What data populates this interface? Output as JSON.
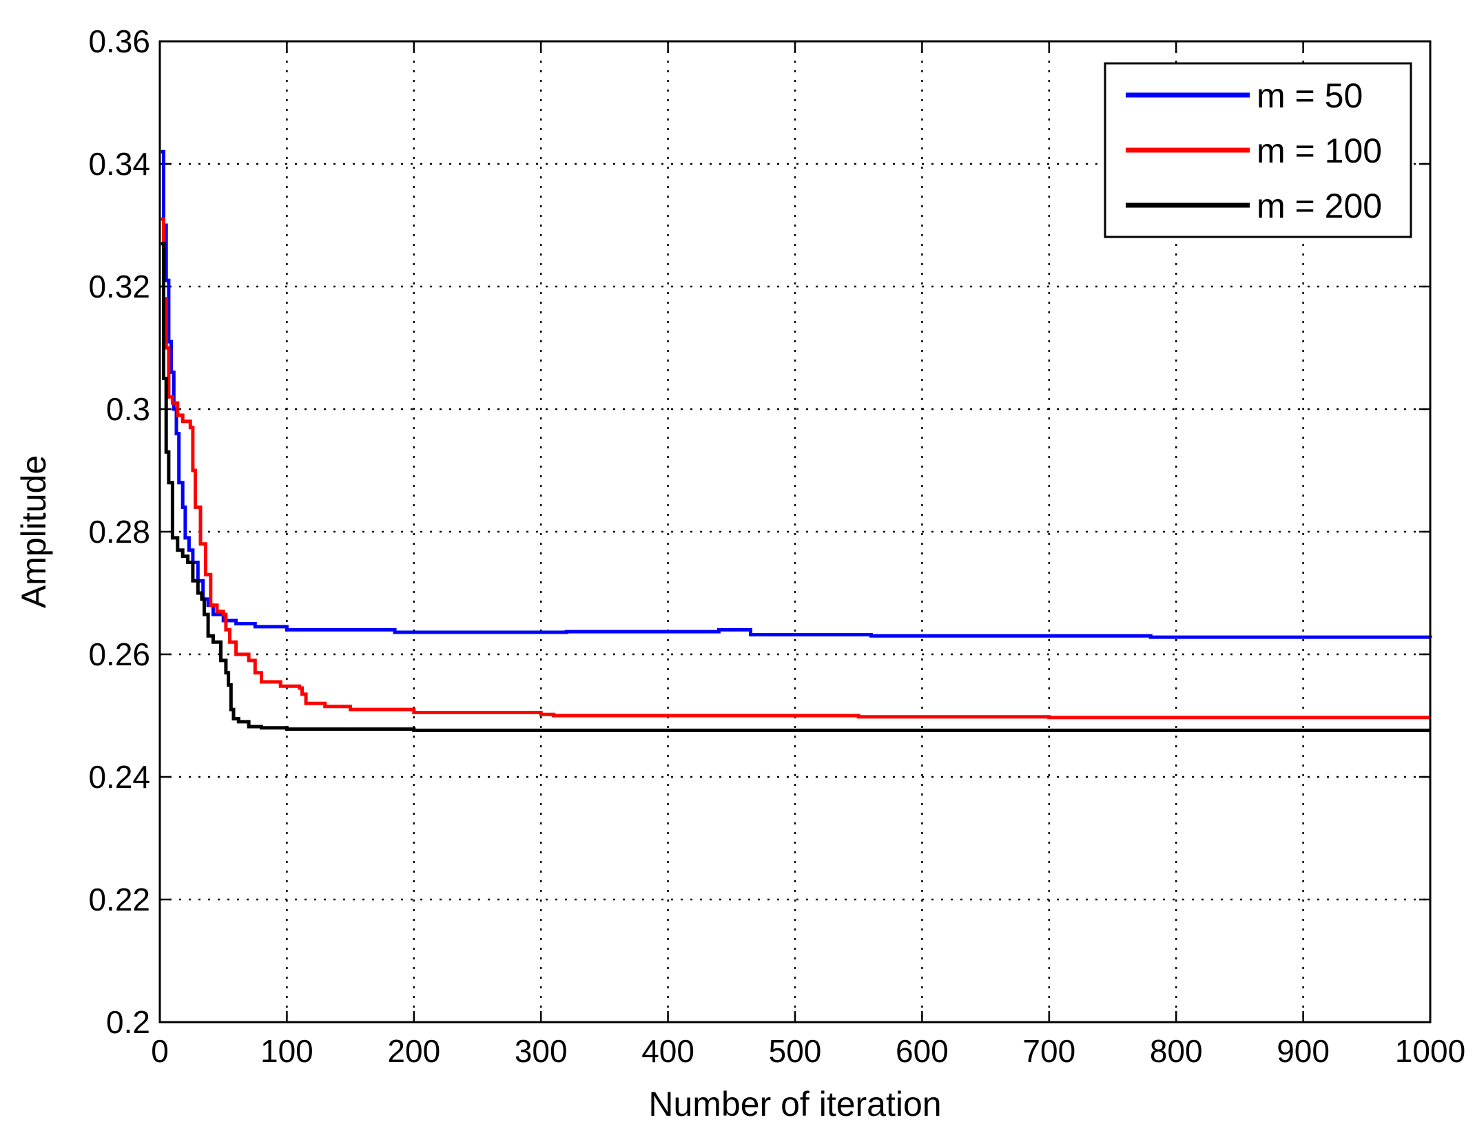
{
  "chart_data": {
    "type": "line",
    "title": "",
    "xlabel": "Number of iteration",
    "ylabel": "Amplitude",
    "xlim": [
      0,
      1000
    ],
    "ylim": [
      0.2,
      0.36
    ],
    "x_ticks": [
      0,
      100,
      200,
      300,
      400,
      500,
      600,
      700,
      800,
      900,
      1000
    ],
    "x_tick_labels": [
      "0",
      "100",
      "200",
      "300",
      "400",
      "500",
      "600",
      "700",
      "800",
      "900",
      "1000"
    ],
    "y_ticks": [
      0.2,
      0.22,
      0.24,
      0.26,
      0.28,
      0.3,
      0.32,
      0.34,
      0.36
    ],
    "y_tick_labels": [
      "0.2",
      "0.22",
      "0.24",
      "0.26",
      "0.28",
      "0.3",
      "0.32",
      "0.34",
      "0.36"
    ],
    "grid": true,
    "legend_position": "top-right",
    "series": [
      {
        "name": "m = 50",
        "color": "#0000ff",
        "points": [
          [
            1,
            0.342
          ],
          [
            3,
            0.33
          ],
          [
            5,
            0.321
          ],
          [
            7,
            0.311
          ],
          [
            9,
            0.306
          ],
          [
            11,
            0.3
          ],
          [
            13,
            0.296
          ],
          [
            15,
            0.288
          ],
          [
            18,
            0.284
          ],
          [
            20,
            0.279
          ],
          [
            23,
            0.277
          ],
          [
            26,
            0.275
          ],
          [
            30,
            0.272
          ],
          [
            34,
            0.269
          ],
          [
            38,
            0.268
          ],
          [
            42,
            0.2665
          ],
          [
            50,
            0.2655
          ],
          [
            60,
            0.265
          ],
          [
            70,
            0.265
          ],
          [
            75,
            0.2645
          ],
          [
            100,
            0.264
          ],
          [
            180,
            0.264
          ],
          [
            185,
            0.2636
          ],
          [
            300,
            0.2636
          ],
          [
            320,
            0.2637
          ],
          [
            440,
            0.264
          ],
          [
            460,
            0.264
          ],
          [
            465,
            0.2632
          ],
          [
            540,
            0.2632
          ],
          [
            560,
            0.263
          ],
          [
            700,
            0.263
          ],
          [
            780,
            0.2628
          ],
          [
            1000,
            0.2627
          ]
        ]
      },
      {
        "name": "m = 100",
        "color": "#ff0000",
        "points": [
          [
            1,
            0.331
          ],
          [
            3,
            0.318
          ],
          [
            5,
            0.31
          ],
          [
            7,
            0.302
          ],
          [
            10,
            0.301
          ],
          [
            14,
            0.299
          ],
          [
            18,
            0.298
          ],
          [
            24,
            0.297
          ],
          [
            26,
            0.29
          ],
          [
            28,
            0.284
          ],
          [
            32,
            0.278
          ],
          [
            36,
            0.273
          ],
          [
            40,
            0.268
          ],
          [
            45,
            0.267
          ],
          [
            50,
            0.2665
          ],
          [
            52,
            0.264
          ],
          [
            55,
            0.262
          ],
          [
            60,
            0.26
          ],
          [
            70,
            0.259
          ],
          [
            75,
            0.257
          ],
          [
            80,
            0.2555
          ],
          [
            95,
            0.2548
          ],
          [
            110,
            0.2545
          ],
          [
            112,
            0.2535
          ],
          [
            115,
            0.252
          ],
          [
            130,
            0.2515
          ],
          [
            150,
            0.251
          ],
          [
            200,
            0.2505
          ],
          [
            300,
            0.2502
          ],
          [
            310,
            0.25
          ],
          [
            400,
            0.25
          ],
          [
            550,
            0.2498
          ],
          [
            700,
            0.2497
          ],
          [
            1000,
            0.2497
          ]
        ]
      },
      {
        "name": "m = 200",
        "color": "#000000",
        "points": [
          [
            1,
            0.327
          ],
          [
            3,
            0.305
          ],
          [
            5,
            0.293
          ],
          [
            7,
            0.288
          ],
          [
            10,
            0.279
          ],
          [
            14,
            0.277
          ],
          [
            18,
            0.276
          ],
          [
            22,
            0.275
          ],
          [
            26,
            0.272
          ],
          [
            30,
            0.27
          ],
          [
            33,
            0.269
          ],
          [
            35,
            0.2665
          ],
          [
            38,
            0.263
          ],
          [
            42,
            0.262
          ],
          [
            48,
            0.259
          ],
          [
            52,
            0.257
          ],
          [
            54,
            0.255
          ],
          [
            56,
            0.251
          ],
          [
            58,
            0.2495
          ],
          [
            62,
            0.249
          ],
          [
            70,
            0.2482
          ],
          [
            80,
            0.248
          ],
          [
            100,
            0.2478
          ],
          [
            200,
            0.2476
          ],
          [
            400,
            0.2476
          ],
          [
            600,
            0.2476
          ],
          [
            800,
            0.2476
          ],
          [
            1000,
            0.2476
          ]
        ]
      }
    ]
  }
}
